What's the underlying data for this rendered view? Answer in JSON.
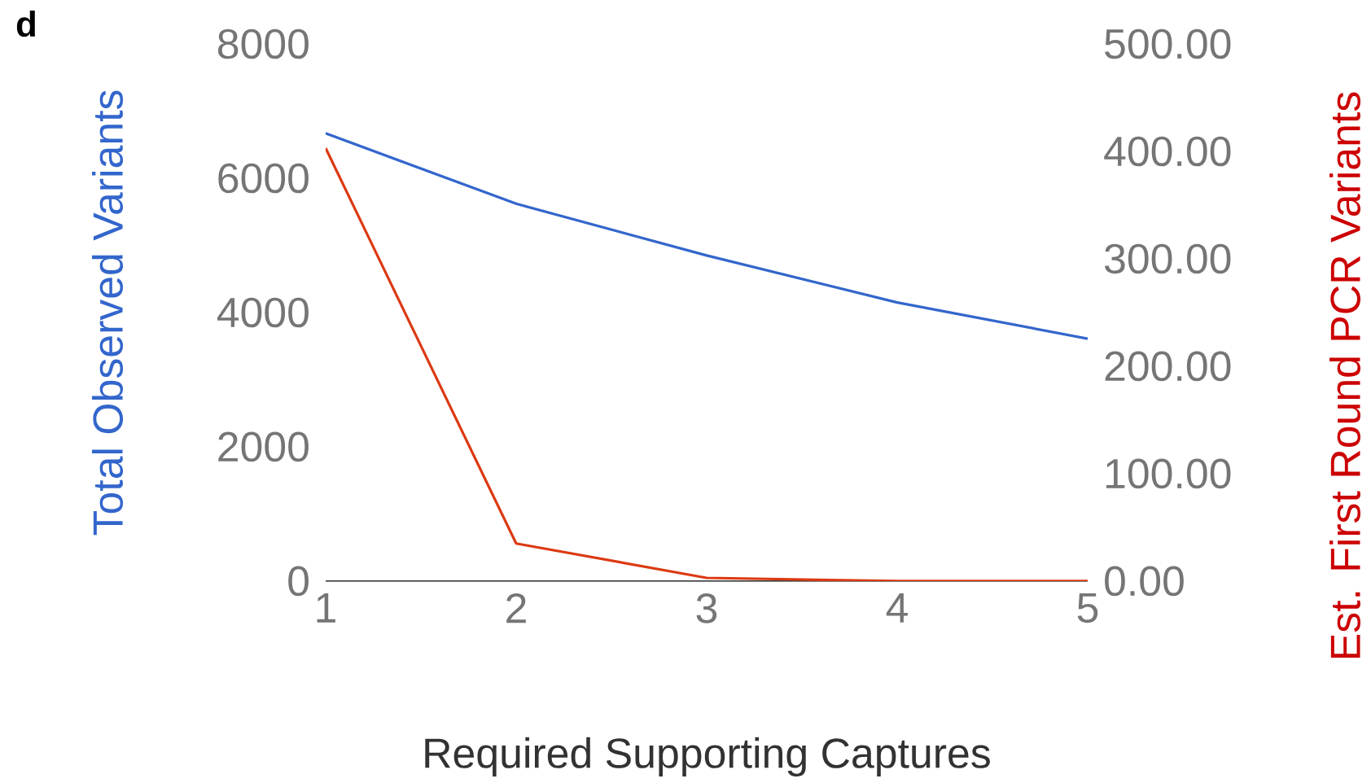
{
  "chart_data": {
    "type": "line",
    "xlabel": "Required Supporting Captures",
    "ylabel": "Total Observed Variants",
    "y2label": "Est. First Round PCR Variants",
    "annotations": [
      "d"
    ],
    "x": [
      1,
      2,
      3,
      4,
      5
    ],
    "xlim": [
      1,
      5
    ],
    "xticks": [
      1,
      2,
      3,
      4,
      5
    ],
    "ylim": [
      0,
      8000
    ],
    "yticks": [
      0,
      2000,
      4000,
      6000,
      8000
    ],
    "y2lim": [
      0,
      500
    ],
    "y2ticks": [
      {
        "value": 0,
        "label": "0.00"
      },
      {
        "value": 100,
        "label": "100.00"
      },
      {
        "value": 200,
        "label": "200.00"
      },
      {
        "value": 300,
        "label": "300.00"
      },
      {
        "value": 400,
        "label": "400.00"
      },
      {
        "value": 500,
        "label": "500.00"
      }
    ],
    "series": [
      {
        "color": "#3366cc",
        "values": [
          6670,
          5620,
          4850,
          4150,
          3610
        ]
      },
      {
        "color": "#dc3912",
        "axis": "y2",
        "values": [
          403,
          35,
          3,
          0,
          0
        ]
      }
    ]
  }
}
